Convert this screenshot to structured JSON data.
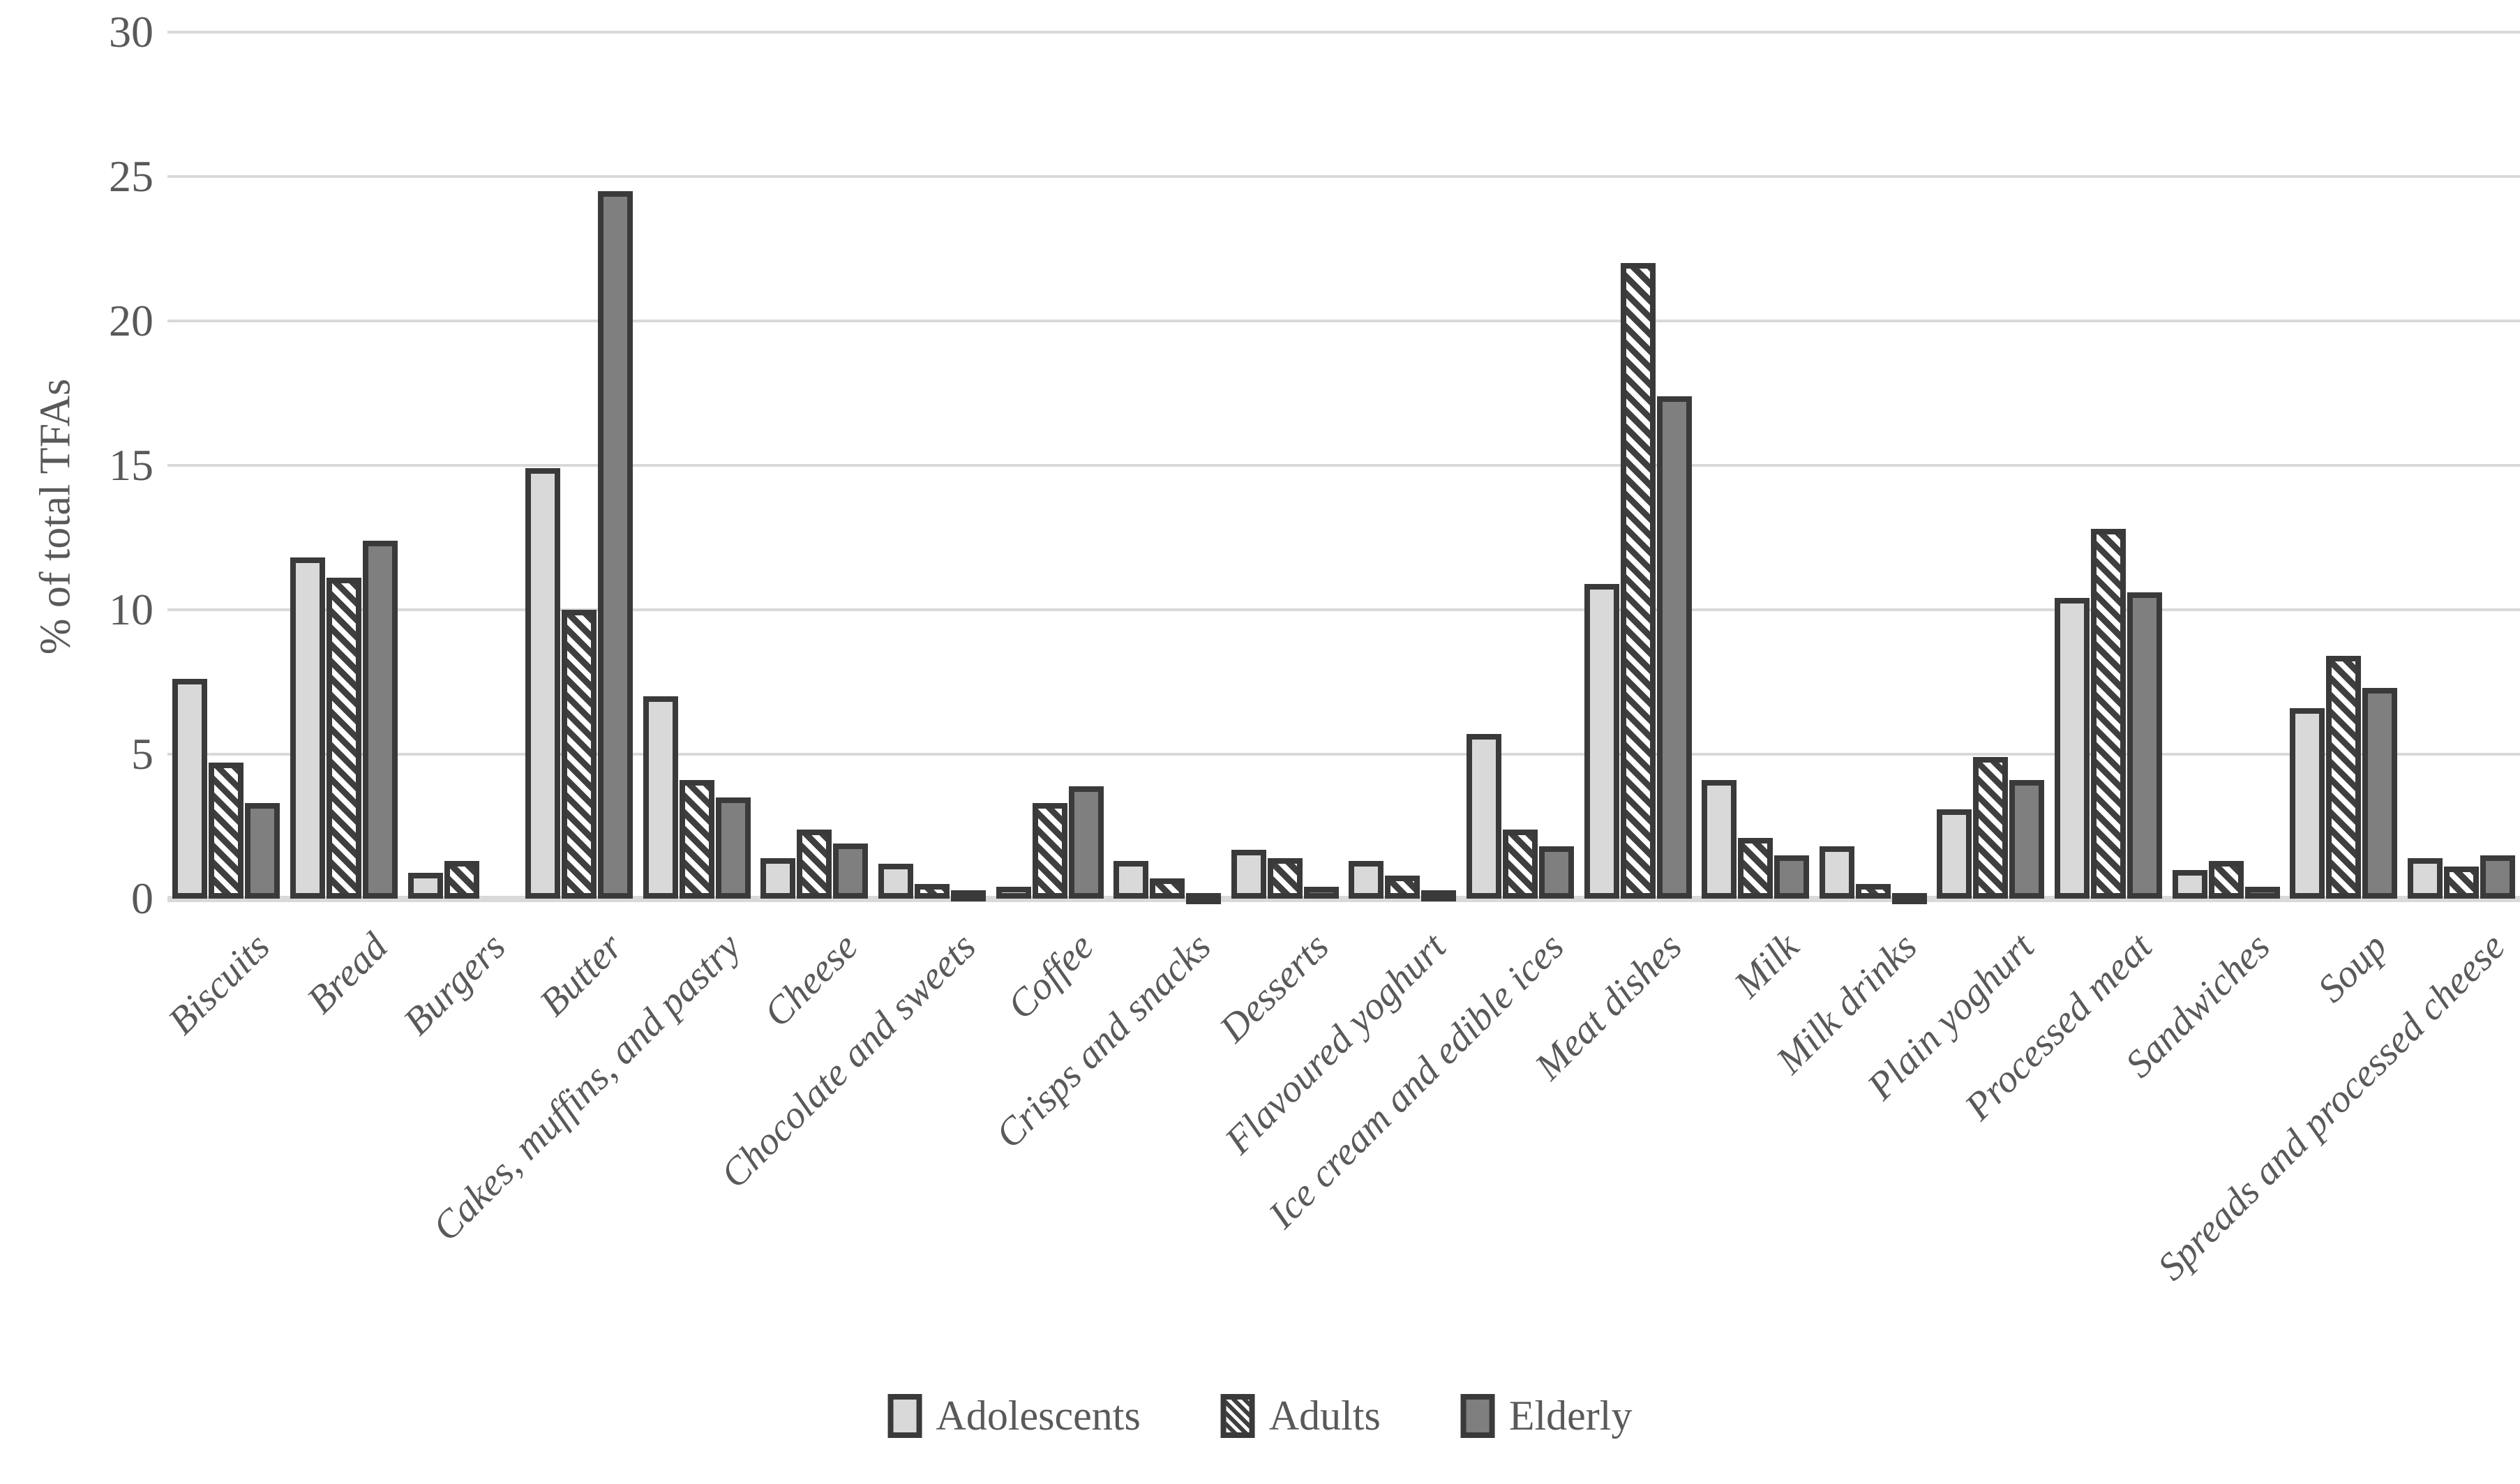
{
  "chart_data": {
    "type": "bar",
    "title": "",
    "xlabel": "",
    "ylabel": "% of total TFAs",
    "ylim": [
      0,
      30
    ],
    "yticks": [
      0,
      5,
      10,
      15,
      20,
      25,
      30
    ],
    "grid": true,
    "legend_position": "bottom-center",
    "categories": [
      "Biscuits",
      "Bread",
      "Burgers",
      "Butter",
      "Cakes, muffins, and pastry",
      "Cheese",
      "Chocolate and sweets",
      "Coffee",
      "Crisps and snacks",
      "Desserts",
      "Flavoured yoghurt",
      "Ice cream and edible ices",
      "Meat dishes",
      "Milk",
      "Milk drinks",
      "Plain yoghurt",
      "Processed meat",
      "Sandwiches",
      "Soup",
      "Spreads and processed cheese"
    ],
    "series": [
      {
        "name": "Adolescents",
        "style": "light",
        "values": [
          7.6,
          11.8,
          0.9,
          14.9,
          7.0,
          1.4,
          1.2,
          0.4,
          1.3,
          1.7,
          1.3,
          5.7,
          10.9,
          4.1,
          1.8,
          3.1,
          10.4,
          1.0,
          6.6,
          1.4
        ]
      },
      {
        "name": "Adults",
        "style": "hatched",
        "values": [
          4.7,
          11.1,
          1.3,
          10.0,
          4.1,
          2.4,
          0.5,
          3.3,
          0.7,
          1.4,
          0.8,
          2.4,
          22.0,
          2.1,
          0.5,
          4.9,
          12.8,
          1.3,
          8.4,
          1.1
        ]
      },
      {
        "name": "Elderly",
        "style": "dark",
        "values": [
          3.3,
          12.4,
          0,
          24.5,
          3.5,
          1.9,
          0.3,
          3.9,
          0.2,
          0.4,
          0.3,
          1.8,
          17.4,
          1.5,
          0.2,
          4.1,
          10.6,
          0.4,
          7.3,
          1.5
        ]
      }
    ]
  },
  "colors": {
    "light_fill": "#d9d9d9",
    "dark_fill": "#7f7f7f",
    "hatch_stripe": "#3f3f3f",
    "hatch_background": "#ffffff",
    "bar_border": "#3a3a3a",
    "gridline": "#d9d9d9",
    "axis_text": "#595959"
  }
}
